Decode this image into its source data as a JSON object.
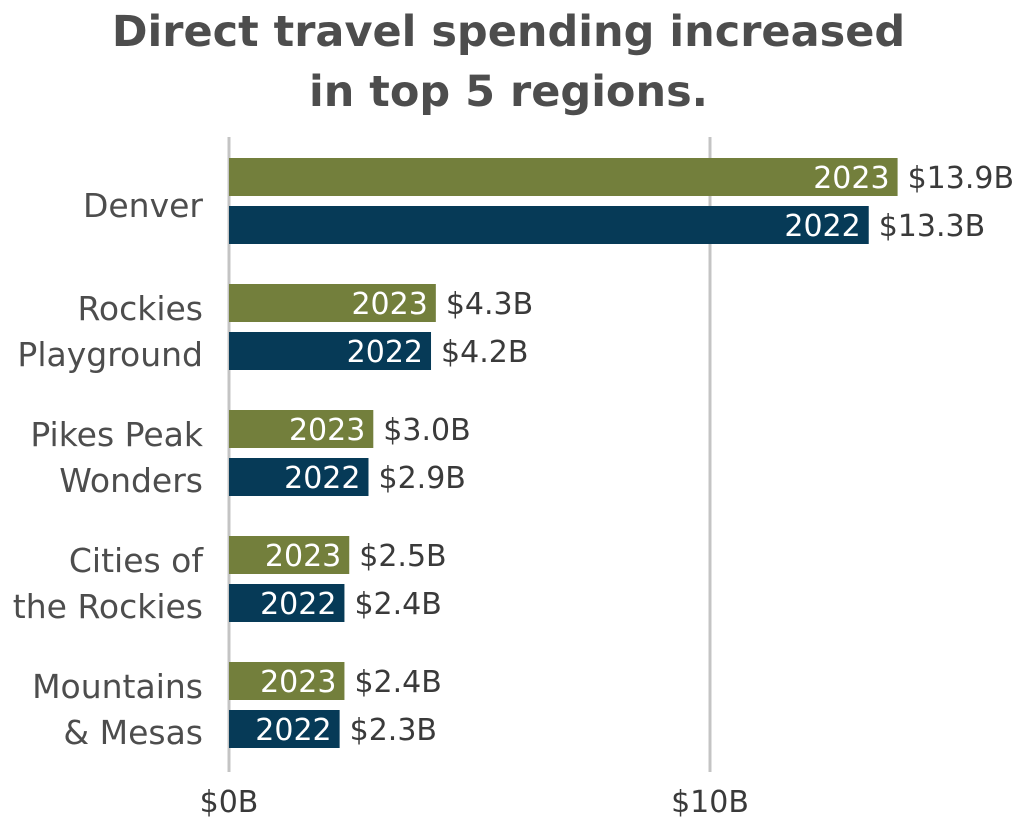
{
  "title_line1": "Direct travel spending increased",
  "title_line2": "in top 5 regions.",
  "chart_data": {
    "type": "bar",
    "orientation": "horizontal",
    "title": "Direct travel spending increased in top 5 regions.",
    "categories": [
      [
        "Denver"
      ],
      [
        "Rockies",
        "Playground"
      ],
      [
        "Pikes Peak",
        "Wonders"
      ],
      [
        "Cities of",
        "the Rockies"
      ],
      [
        "Mountains",
        "& Mesas"
      ]
    ],
    "series": [
      {
        "name": "2023",
        "color": "#737f3c",
        "values": [
          13.9,
          4.3,
          3.0,
          2.5,
          2.4
        ],
        "labels": [
          "$13.9B",
          "$4.3B",
          "$3.0B",
          "$2.5B",
          "$2.4B"
        ]
      },
      {
        "name": "2022",
        "color": "#063a57",
        "values": [
          13.3,
          4.2,
          2.9,
          2.4,
          2.3
        ],
        "labels": [
          "$13.3B",
          "$4.2B",
          "$2.9B",
          "$2.4B",
          "$2.3B"
        ]
      }
    ],
    "x_ticks": [
      0,
      10
    ],
    "x_tick_labels": [
      "$0B",
      "$10B"
    ],
    "xlim": [
      0,
      15
    ],
    "grid": "vertical gridlines at ticks",
    "gridline_color": "#c4c4c4"
  }
}
